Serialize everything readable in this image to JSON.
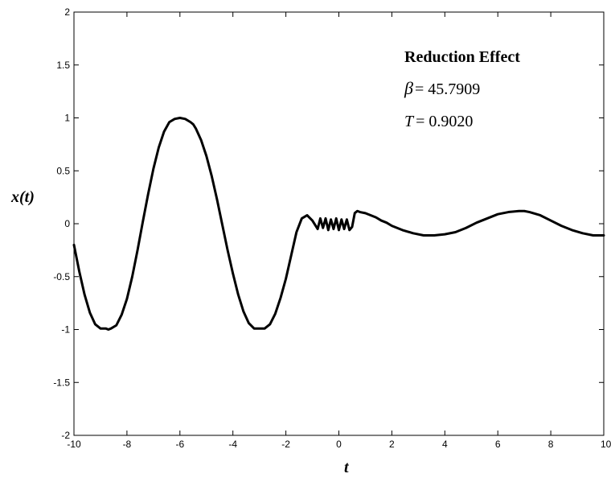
{
  "chart_data": {
    "type": "line",
    "title": "",
    "xlabel": "t",
    "ylabel": "x(t)",
    "xlim": [
      -10,
      10
    ],
    "ylim": [
      -2,
      2
    ],
    "xticks": [
      -10,
      -8,
      -6,
      -4,
      -2,
      0,
      2,
      4,
      6,
      8,
      10
    ],
    "yticks": [
      -2,
      -1.5,
      -1,
      -0.5,
      0,
      0.5,
      1,
      1.5,
      2
    ],
    "xtick_labels": [
      "-10",
      "-8",
      "-6",
      "-4",
      "-2",
      "0",
      "2",
      "4",
      "6",
      "8",
      "10"
    ],
    "ytick_labels": [
      "-2",
      "-1.5",
      "-1",
      "-0.5",
      "0",
      "0.5",
      "1",
      "1.5",
      "2"
    ],
    "grid": false,
    "annotations": {
      "title": "Reduction Effect",
      "beta_symbol": "β",
      "beta_value": "= 45.7909",
      "T_symbol": "T",
      "T_value": "= 0.9020"
    },
    "series": [
      {
        "x": [
          -10.0,
          -9.8,
          -9.6,
          -9.4,
          -9.2,
          -9.0,
          -8.8,
          -8.7,
          -8.6,
          -8.4,
          -8.2,
          -8.0,
          -7.8,
          -7.6,
          -7.4,
          -7.2,
          -7.0,
          -6.8,
          -6.6,
          -6.4,
          -6.2,
          -6.0,
          -5.8,
          -5.6,
          -5.5,
          -5.4,
          -5.2,
          -5.0,
          -4.8,
          -4.6,
          -4.4,
          -4.2,
          -4.0,
          -3.8,
          -3.6,
          -3.4,
          -3.2,
          -3.0,
          -2.8,
          -2.6,
          -2.4,
          -2.2,
          -2.0,
          -1.8,
          -1.6,
          -1.4,
          -1.2,
          -1.0,
          -0.8,
          -0.7,
          -0.6,
          -0.5,
          -0.4,
          -0.3,
          -0.2,
          -0.1,
          0.0,
          0.1,
          0.2,
          0.3,
          0.4,
          0.5,
          0.6,
          0.7,
          0.8,
          1.0,
          1.2,
          1.4,
          1.6,
          1.8,
          2.0,
          2.4,
          2.8,
          3.2,
          3.6,
          4.0,
          4.4,
          4.8,
          5.2,
          5.6,
          6.0,
          6.4,
          6.8,
          7.0,
          7.2,
          7.6,
          8.0,
          8.4,
          8.8,
          9.2,
          9.6,
          10.0
        ],
        "y": [
          -0.2,
          -0.45,
          -0.67,
          -0.84,
          -0.95,
          -0.99,
          -0.99,
          -1.0,
          -0.99,
          -0.96,
          -0.86,
          -0.71,
          -0.5,
          -0.25,
          0.02,
          0.28,
          0.52,
          0.72,
          0.87,
          0.96,
          0.99,
          1.0,
          0.99,
          0.96,
          0.94,
          0.9,
          0.79,
          0.64,
          0.45,
          0.23,
          -0.01,
          -0.25,
          -0.47,
          -0.67,
          -0.83,
          -0.94,
          -0.99,
          -0.99,
          -0.99,
          -0.95,
          -0.85,
          -0.7,
          -0.52,
          -0.3,
          -0.08,
          0.05,
          0.08,
          0.03,
          -0.05,
          0.05,
          -0.04,
          0.05,
          -0.06,
          0.04,
          -0.05,
          0.05,
          -0.06,
          0.04,
          -0.05,
          0.04,
          -0.06,
          -0.03,
          0.1,
          0.12,
          0.11,
          0.1,
          0.08,
          0.06,
          0.03,
          0.01,
          -0.02,
          -0.06,
          -0.09,
          -0.11,
          -0.11,
          -0.1,
          -0.08,
          -0.04,
          0.01,
          0.05,
          0.09,
          0.11,
          0.12,
          0.12,
          0.11,
          0.08,
          0.03,
          -0.02,
          -0.06,
          -0.09,
          -0.11,
          -0.11
        ]
      }
    ]
  }
}
